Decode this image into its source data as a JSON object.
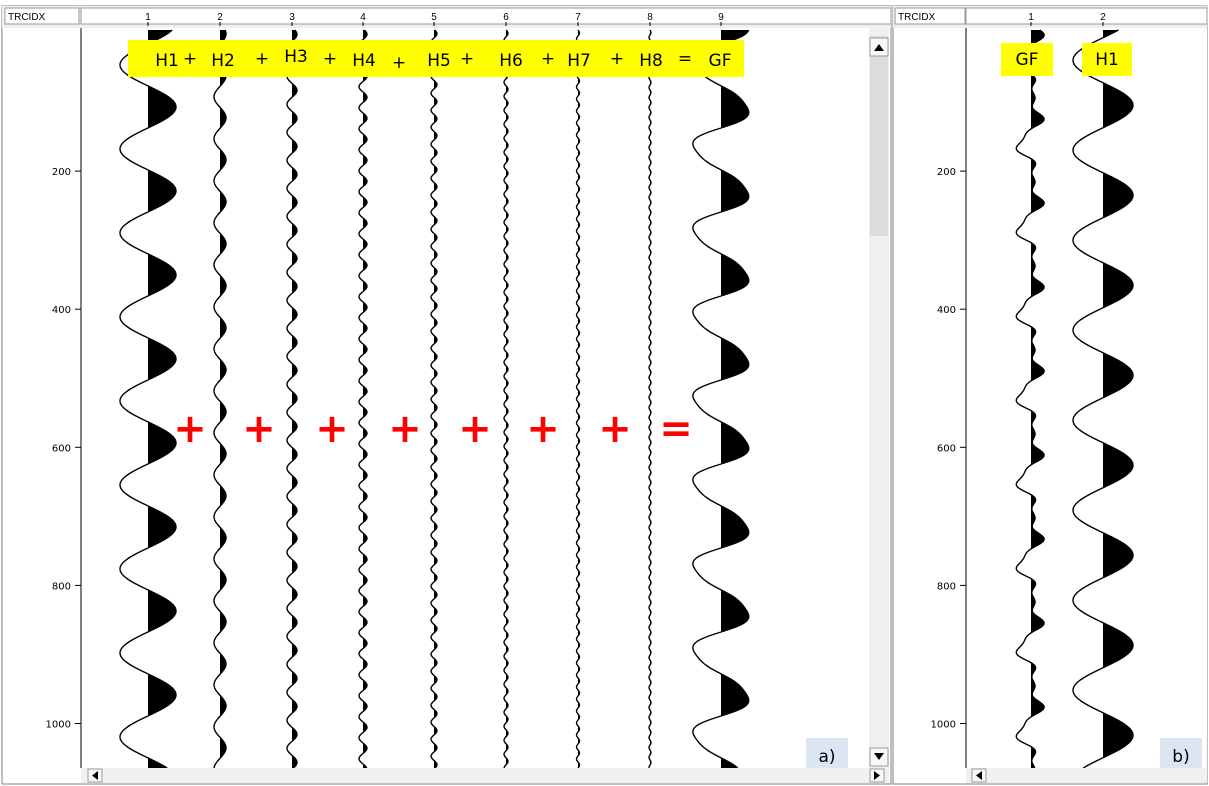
{
  "colors": {
    "highlight": "#ffff00",
    "operator": "#ff0000",
    "panel_label_bg": "#dce6f2",
    "scroll_bg": "#f0f0f0",
    "header_bg": "#f0f0f0"
  },
  "panel_a": {
    "header_label": "TRCIDX",
    "trace_indices": [
      "1",
      "2",
      "3",
      "4",
      "5",
      "6",
      "7",
      "8",
      "9"
    ],
    "y_ticks": [
      "200",
      "400",
      "600",
      "800",
      "1000"
    ],
    "equation": [
      "H1",
      "+",
      "H2",
      "+",
      "H3",
      "+",
      "H4",
      "+",
      "H5",
      "+",
      "H6",
      "+",
      "H7",
      "+",
      "H8",
      "=",
      "GF"
    ],
    "operators": [
      "+",
      "+",
      "+",
      "+",
      "+",
      "+",
      "+",
      "="
    ],
    "corner_label": "a)"
  },
  "panel_b": {
    "header_label": "TRCIDX",
    "trace_indices": [
      "1",
      "2"
    ],
    "y_ticks": [
      "200",
      "400",
      "600",
      "800",
      "1000"
    ],
    "trace_labels": [
      "GF",
      "H1"
    ],
    "corner_label": "b)"
  }
}
